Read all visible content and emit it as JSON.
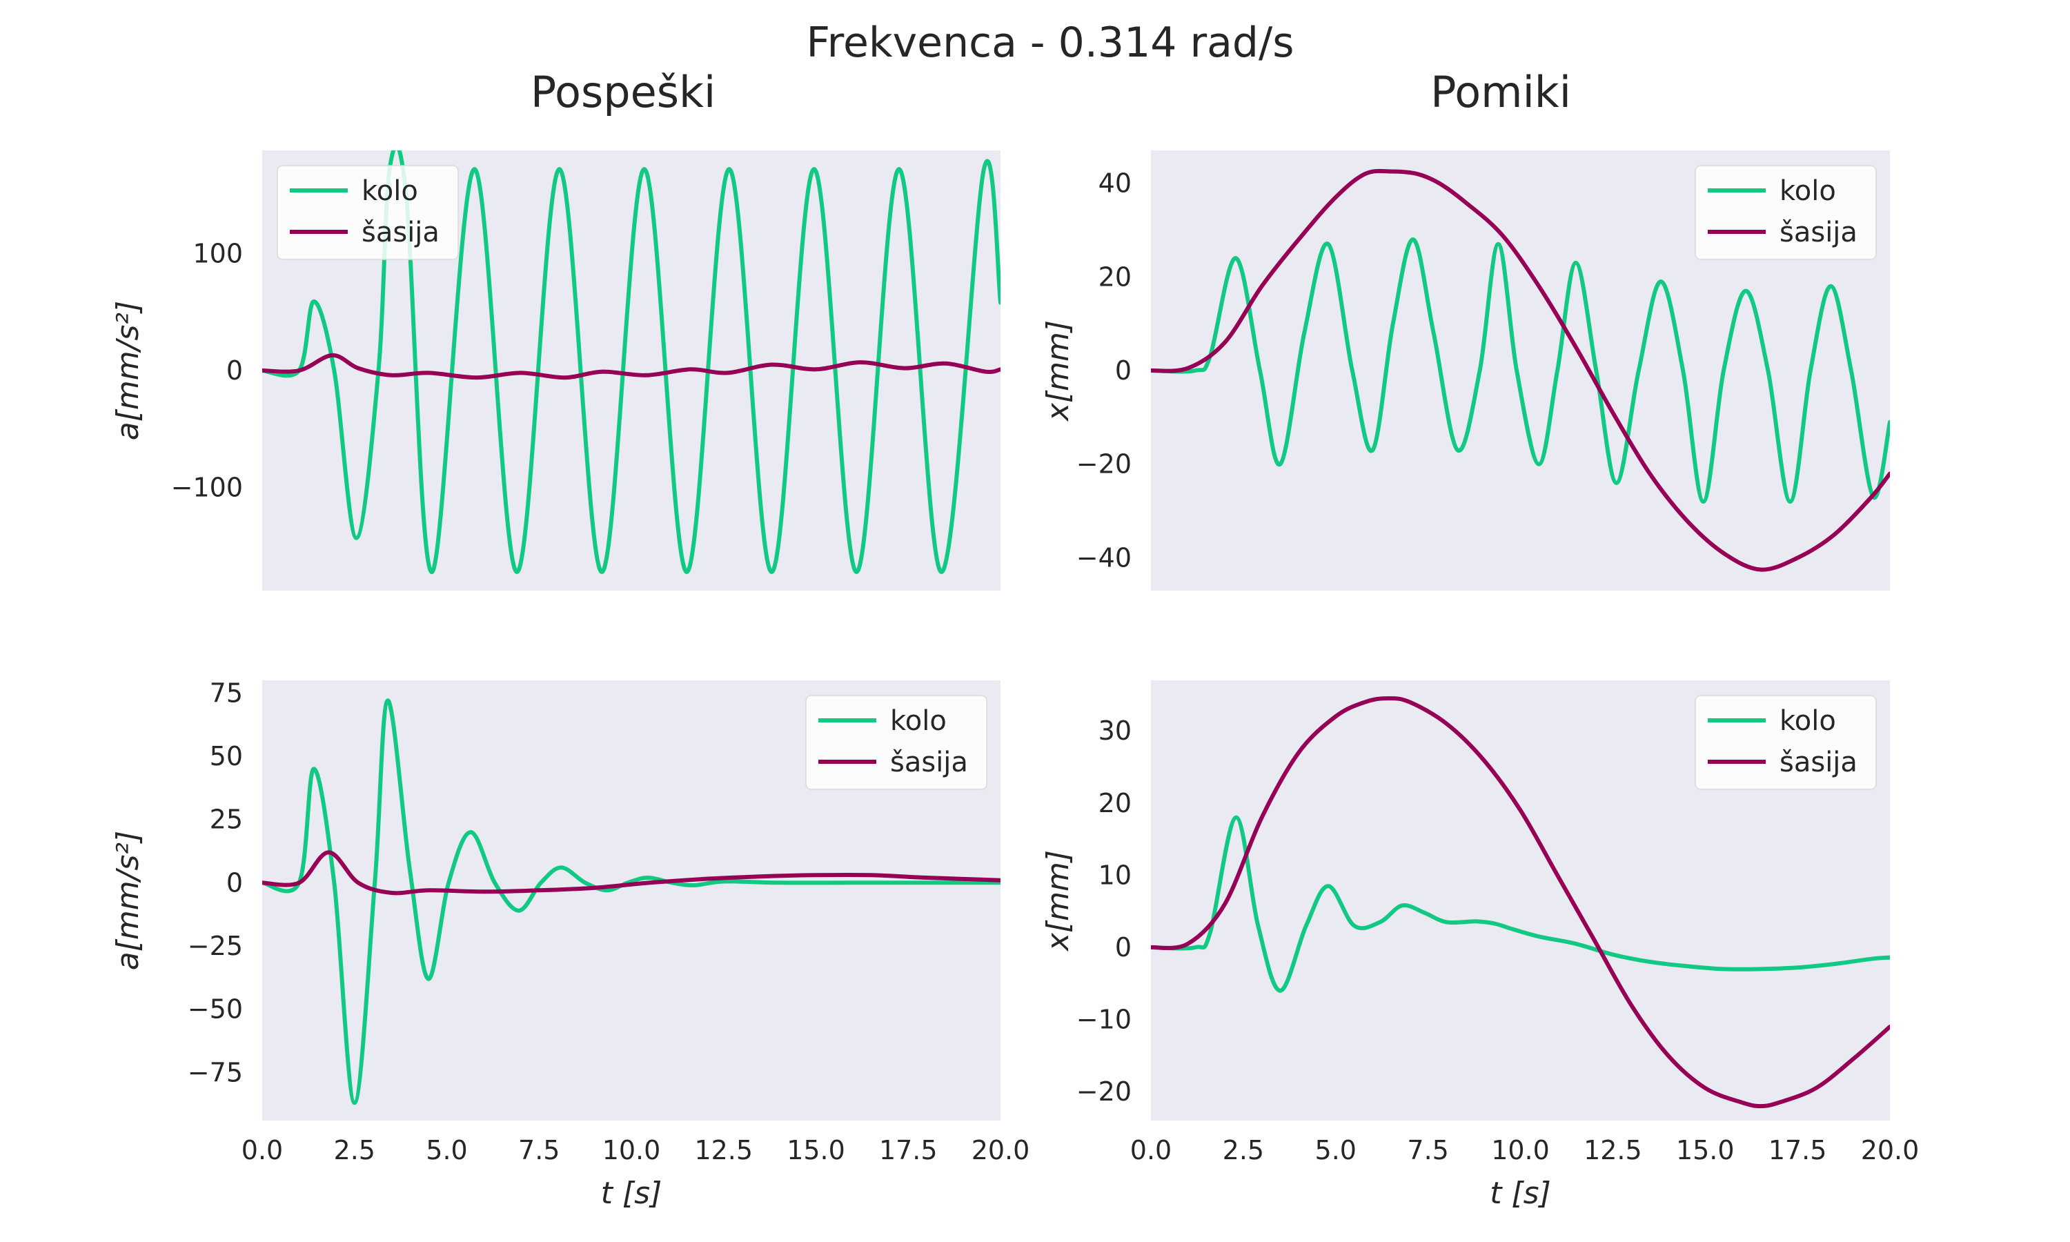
{
  "figure": {
    "suptitle": "Frekvenca - 0.314 rad/s",
    "col_titles": [
      "Pospeški",
      "Pomiki"
    ]
  },
  "colors": {
    "kolo": "#12c984",
    "sasija": "#960055",
    "panel_bg": "#eaeaf2"
  },
  "chart_data": [
    {
      "id": "acc-top",
      "type": "line",
      "title": "",
      "xlabel": "",
      "ylabel": "a[mm/s²]",
      "xlim": [
        0,
        20
      ],
      "ylim": [
        -188,
        188
      ],
      "yticks": [
        -100,
        0,
        100
      ],
      "xticks": [],
      "grid": false,
      "legend": "top-left",
      "series": [
        {
          "name": "kolo",
          "x": [
            0,
            1.0,
            1.4,
            1.95,
            2.55,
            3.15,
            3.45,
            3.9,
            4.6,
            5.75,
            6.9,
            8.05,
            9.2,
            10.35,
            11.5,
            12.65,
            13.8,
            14.95,
            16.1,
            17.25,
            18.4,
            19.55,
            20.0
          ],
          "y": [
            0,
            0,
            59,
            0,
            -143,
            0,
            172,
            150,
            -172,
            172,
            -172,
            172,
            -172,
            172,
            -172,
            172,
            -172,
            172,
            -172,
            172,
            -172,
            172,
            58
          ]
        },
        {
          "name": "šasija",
          "x": [
            0,
            1.0,
            1.9,
            2.6,
            3.5,
            4.5,
            5.8,
            7.0,
            8.2,
            9.2,
            10.4,
            11.6,
            12.6,
            13.8,
            15.0,
            16.2,
            17.4,
            18.5,
            19.6,
            20.0
          ],
          "y": [
            0,
            0,
            13,
            2,
            -4,
            -2,
            -6,
            -2,
            -6,
            -1,
            -4,
            1,
            -2,
            5,
            1,
            7,
            2,
            6,
            -1,
            1
          ]
        }
      ]
    },
    {
      "id": "disp-top",
      "type": "line",
      "title": "",
      "xlabel": "",
      "ylabel": "x[mm]",
      "xlim": [
        0,
        20
      ],
      "ylim": [
        -47,
        47
      ],
      "yticks": [
        -40,
        -20,
        0,
        20,
        40
      ],
      "xticks": [],
      "grid": false,
      "legend": "top-right",
      "series": [
        {
          "name": "kolo",
          "x": [
            0,
            1.2,
            1.6,
            2.3,
            2.95,
            3.5,
            4.15,
            4.8,
            5.45,
            6.0,
            6.55,
            7.1,
            7.65,
            8.3,
            8.9,
            9.4,
            9.9,
            10.5,
            11.0,
            11.5,
            12.05,
            12.6,
            13.2,
            13.8,
            14.4,
            14.95,
            15.5,
            16.1,
            16.7,
            17.3,
            17.85,
            18.4,
            18.95,
            19.55,
            20.0
          ],
          "y": [
            0,
            0,
            3,
            24,
            0,
            -20,
            8,
            27,
            0,
            -17,
            10,
            28,
            8,
            -17,
            0,
            27,
            0,
            -20,
            0,
            23,
            0,
            -24,
            0,
            19,
            0,
            -28,
            0,
            17,
            0,
            -28,
            0,
            18,
            0,
            -27,
            -11
          ]
        },
        {
          "name": "šasija",
          "x": [
            0,
            1.0,
            2.0,
            3.0,
            4.0,
            5.0,
            5.8,
            6.5,
            7.2,
            7.8,
            8.5,
            9.5,
            10.5,
            11.5,
            12.5,
            13.5,
            14.5,
            15.5,
            16.5,
            17.5,
            18.5,
            19.5,
            20.0
          ],
          "y": [
            0,
            0.5,
            6,
            18,
            28,
            37,
            42,
            42.5,
            42,
            40,
            36,
            29,
            18,
            5,
            -9,
            -22,
            -32,
            -39,
            -42.5,
            -40,
            -35,
            -27,
            -22
          ]
        }
      ]
    },
    {
      "id": "acc-bottom",
      "type": "line",
      "title": "",
      "xlabel": "t [s]",
      "ylabel": "a[mm/s²]",
      "xlim": [
        0,
        20
      ],
      "ylim": [
        -94,
        80
      ],
      "yticks": [
        -75,
        -50,
        -25,
        0,
        25,
        50,
        75
      ],
      "xticks": [
        "0.0",
        "2.5",
        "5.0",
        "7.5",
        "10.0",
        "12.5",
        "15.0",
        "17.5",
        "20.0"
      ],
      "grid": false,
      "legend": "top-right",
      "series": [
        {
          "name": "kolo",
          "x": [
            0,
            1.0,
            1.4,
            1.95,
            2.5,
            3.05,
            3.4,
            4.0,
            4.5,
            5.05,
            5.65,
            6.3,
            6.95,
            7.55,
            8.1,
            8.75,
            9.35,
            9.9,
            10.45,
            11.1,
            11.7,
            12.5,
            14.0,
            16.0,
            18.0,
            20.0
          ],
          "y": [
            0,
            0,
            45,
            0,
            -87,
            0,
            72,
            5,
            -38,
            0,
            20,
            0,
            -11,
            0,
            6,
            0,
            -3,
            0,
            2,
            0,
            -1,
            0.5,
            0,
            0,
            0,
            0
          ]
        },
        {
          "name": "šasija",
          "x": [
            0,
            1.0,
            1.8,
            2.6,
            3.5,
            4.5,
            6.0,
            7.5,
            9.0,
            10.5,
            12.0,
            13.5,
            15.0,
            16.5,
            18.0,
            20.0
          ],
          "y": [
            0,
            0,
            12,
            0,
            -4,
            -3,
            -3.5,
            -3,
            -2,
            0,
            1.5,
            2.5,
            3,
            3,
            2,
            1
          ]
        }
      ]
    },
    {
      "id": "disp-bottom",
      "type": "line",
      "title": "",
      "xlabel": "t [s]",
      "ylabel": "x[mm]",
      "xlim": [
        0,
        20
      ],
      "ylim": [
        -24,
        37
      ],
      "yticks": [
        -20,
        -10,
        0,
        10,
        20,
        30
      ],
      "xticks": [
        "0.0",
        "2.5",
        "5.0",
        "7.5",
        "10.0",
        "12.5",
        "15.0",
        "17.5",
        "20.0"
      ],
      "grid": false,
      "legend": "top-right",
      "series": [
        {
          "name": "kolo",
          "x": [
            0,
            1.2,
            1.6,
            2.3,
            2.9,
            3.5,
            4.2,
            4.8,
            5.5,
            6.2,
            6.8,
            7.4,
            8.0,
            8.8,
            9.3,
            9.8,
            10.5,
            11.5,
            12.5,
            13.5,
            14.5,
            15.5,
            16.5,
            17.5,
            18.5,
            19.5,
            20.0
          ],
          "y": [
            0,
            0,
            2,
            18,
            3,
            -6,
            3,
            8.5,
            3,
            3.5,
            5.8,
            4.8,
            3.5,
            3.6,
            3.3,
            2.5,
            1.5,
            0.5,
            -1,
            -2,
            -2.6,
            -3,
            -3,
            -2.8,
            -2.3,
            -1.6,
            -1.4
          ]
        },
        {
          "name": "šasija",
          "x": [
            0,
            1.0,
            2.0,
            3.0,
            4.0,
            5.0,
            5.8,
            6.4,
            7.0,
            8.0,
            9.0,
            10.0,
            11.0,
            12.0,
            13.0,
            14.0,
            15.0,
            16.0,
            16.5,
            17.0,
            18.0,
            19.0,
            20.0
          ],
          "y": [
            0,
            0.5,
            6,
            18,
            27,
            32,
            34,
            34.5,
            34,
            31,
            26,
            19,
            10,
            1,
            -8,
            -15,
            -19.5,
            -21.5,
            -22,
            -21.5,
            -19.5,
            -15.5,
            -11
          ]
        }
      ]
    }
  ],
  "legend_labels": {
    "kolo": "kolo",
    "sasija": "šasija"
  }
}
